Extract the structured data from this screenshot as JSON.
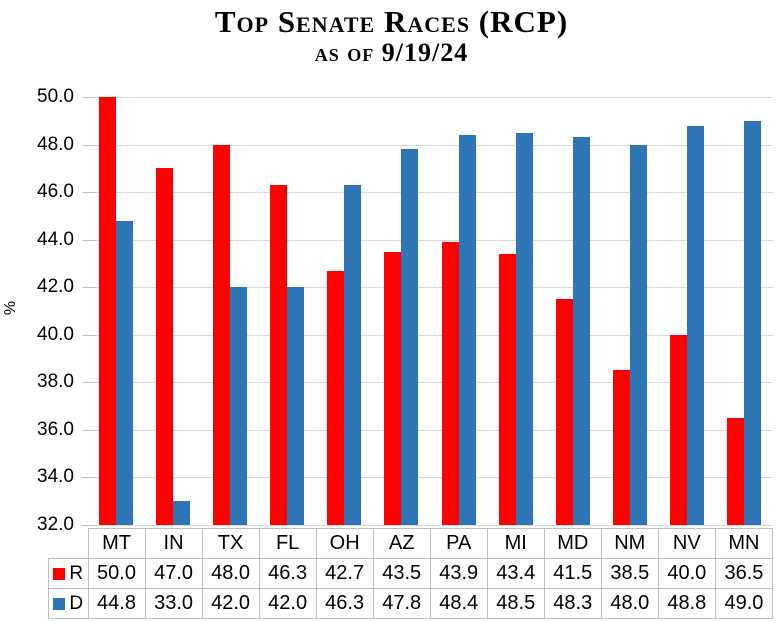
{
  "title": {
    "line1": "Top Senate Races (RCP)",
    "line2": "as of 9/19/24"
  },
  "chart_data": {
    "type": "bar",
    "title": "Top Senate Races (RCP) as of 9/19/24",
    "xlabel": "",
    "ylabel": "%",
    "ylim": [
      32,
      50
    ],
    "ytick_step": 2,
    "grid": true,
    "legend_position": "data-table-left",
    "categories": [
      "MT",
      "IN",
      "TX",
      "FL",
      "OH",
      "AZ",
      "PA",
      "MI",
      "MD",
      "NM",
      "NV",
      "MN"
    ],
    "series": [
      {
        "name": "R",
        "color": "#FF0000",
        "values": [
          50.0,
          47.0,
          48.0,
          46.3,
          42.7,
          43.5,
          43.9,
          43.4,
          41.5,
          38.5,
          40.0,
          36.5
        ]
      },
      {
        "name": "D",
        "color": "#2E75B6",
        "values": [
          44.8,
          33.0,
          42.0,
          42.0,
          46.3,
          47.8,
          48.4,
          48.5,
          48.3,
          48.0,
          48.8,
          49.0
        ]
      }
    ],
    "colors": {
      "gridline": "#D9D9D9",
      "tick": "#BFBFBF",
      "table_border": "#BFBFBF",
      "text": "#000000"
    }
  }
}
